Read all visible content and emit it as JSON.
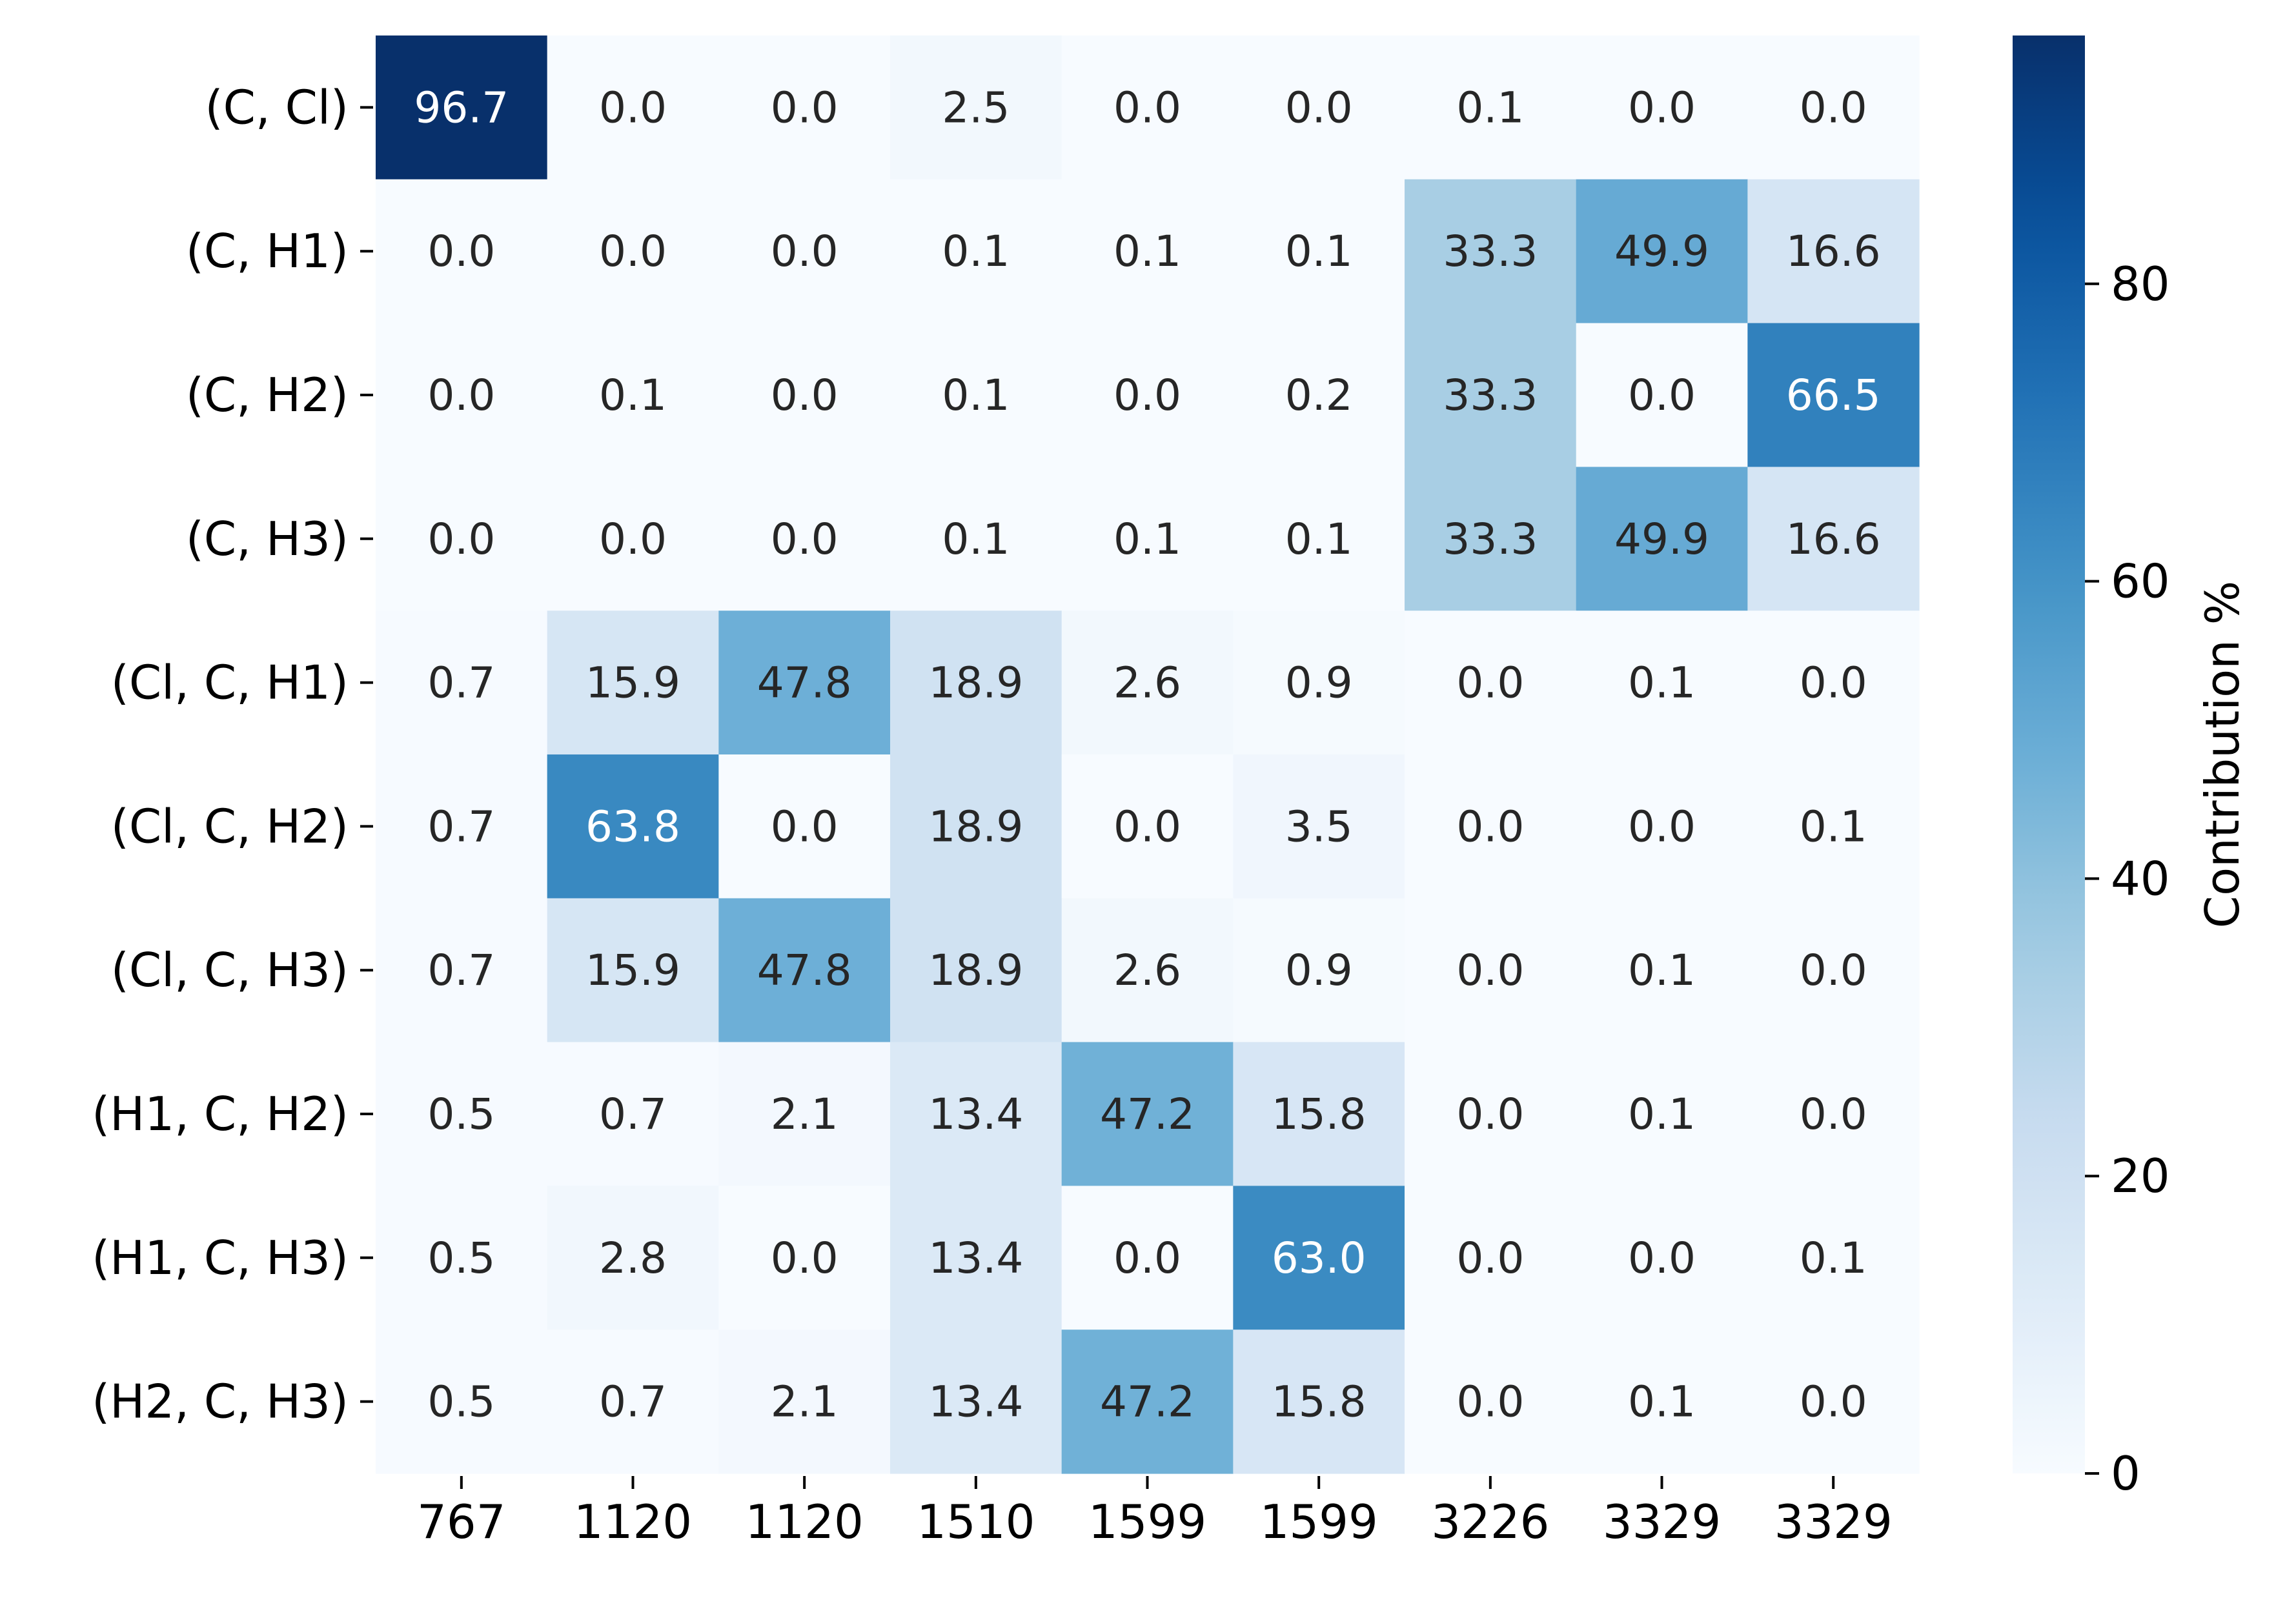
{
  "chart_data": {
    "type": "heatmap",
    "title": "",
    "xlabel": "",
    "ylabel": "",
    "x_categories": [
      "767",
      "1120",
      "1120",
      "1510",
      "1599",
      "1599",
      "3226",
      "3329",
      "3329"
    ],
    "y_categories": [
      "(C, Cl)",
      "(C, H1)",
      "(C, H2)",
      "(C, H3)",
      "(Cl, C, H1)",
      "(Cl, C, H2)",
      "(Cl, C, H3)",
      "(H1, C, H2)",
      "(H1, C, H3)",
      "(H2, C, H3)"
    ],
    "values": [
      [
        96.7,
        0.0,
        0.0,
        2.5,
        0.0,
        0.0,
        0.1,
        0.0,
        0.0
      ],
      [
        0.0,
        0.0,
        0.0,
        0.1,
        0.1,
        0.1,
        33.3,
        49.9,
        16.6
      ],
      [
        0.0,
        0.1,
        0.0,
        0.1,
        0.0,
        0.2,
        33.3,
        0.0,
        66.5
      ],
      [
        0.0,
        0.0,
        0.0,
        0.1,
        0.1,
        0.1,
        33.3,
        49.9,
        16.6
      ],
      [
        0.7,
        15.9,
        47.8,
        18.9,
        2.6,
        0.9,
        0.0,
        0.1,
        0.0
      ],
      [
        0.7,
        63.8,
        0.0,
        18.9,
        0.0,
        3.5,
        0.0,
        0.0,
        0.1
      ],
      [
        0.7,
        15.9,
        47.8,
        18.9,
        2.6,
        0.9,
        0.0,
        0.1,
        0.0
      ],
      [
        0.5,
        0.7,
        2.1,
        13.4,
        47.2,
        15.8,
        0.0,
        0.1,
        0.0
      ],
      [
        0.5,
        2.8,
        0.0,
        13.4,
        0.0,
        63.0,
        0.0,
        0.0,
        0.1
      ],
      [
        0.5,
        0.7,
        2.1,
        13.4,
        47.2,
        15.8,
        0.0,
        0.1,
        0.0
      ]
    ],
    "value_format": "0.1f",
    "colormap": "Blues",
    "vmin": 0,
    "vmax": 96.7,
    "colorbar": {
      "label": "Contribution %",
      "ticks": [
        0,
        20,
        40,
        60,
        80
      ]
    },
    "grid": false,
    "legend": "colorbar-right"
  }
}
